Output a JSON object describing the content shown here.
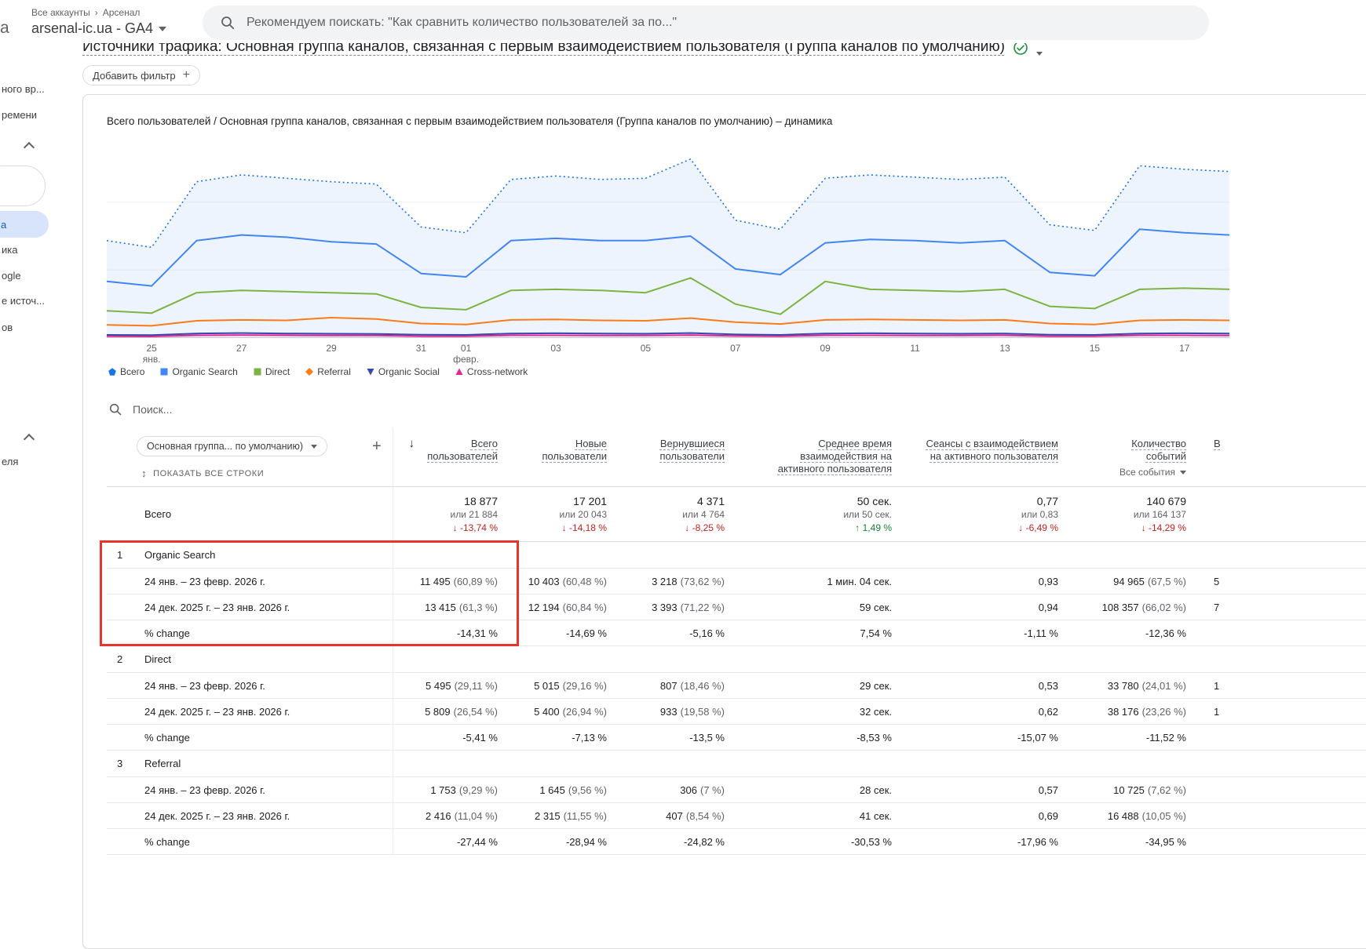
{
  "header": {
    "logo_fragment": "a",
    "breadcrumb": [
      "Все аккаунты",
      "Арсенал"
    ],
    "breadcrumb_separator": "›",
    "property": "arsenal-ic.ua - GA4",
    "search_placeholder": "Рекомендуем поискать: \"Как сравнить количество пользователей за по...\""
  },
  "icons": {
    "arrow_down": "↓",
    "arrow_up": "↑",
    "sort_rows": "↕",
    "plus": "+"
  },
  "sidebar": {
    "fragments": [
      "ного вр...",
      "ремени",
      "ика",
      "ogle",
      "е источ...",
      "ов",
      "еля"
    ],
    "selected_fragment": "а"
  },
  "report": {
    "title": "Источники трафика: Основная группа каналов, связанная с первым взаимодействием пользователя (Группа каналов по умолчанию)",
    "add_filter_label": "Добавить фильтр",
    "chart_title": "Всего пользователей / Основная группа каналов, связанная с первым взаимодействием пользователя (Группа каналов по умолчанию) – динамика",
    "table_search_placeholder": "Поиск..."
  },
  "chart_data": {
    "type": "line",
    "title": "Всего пользователей / Основная группа каналов, связанная с первым взаимодействием пользователя (Группа каналов по умолчанию) – динамика",
    "x_start": "24 янв. 2026",
    "x_end": "18 февр. 2026",
    "ylim": [
      0,
      900
    ],
    "gridlines": [
      300,
      600
    ],
    "ticks": [
      {
        "day": 1,
        "label": "25",
        "sub": "янв."
      },
      {
        "day": 3,
        "label": "27"
      },
      {
        "day": 5,
        "label": "29"
      },
      {
        "day": 7,
        "label": "31"
      },
      {
        "day": 8,
        "label": "01",
        "sub": "февр."
      },
      {
        "day": 10,
        "label": "03"
      },
      {
        "day": 12,
        "label": "05"
      },
      {
        "day": 14,
        "label": "07"
      },
      {
        "day": 16,
        "label": "09"
      },
      {
        "day": 18,
        "label": "11"
      },
      {
        "day": 20,
        "label": "13"
      },
      {
        "day": 22,
        "label": "15"
      },
      {
        "day": 24,
        "label": "17"
      }
    ],
    "series": [
      {
        "name": "Всего",
        "color": "#1a73e8",
        "style": "dotted-area",
        "shape": "pentagon",
        "values": [
          430,
          400,
          690,
          720,
          705,
          690,
          680,
          490,
          465,
          700,
          715,
          700,
          705,
          790,
          520,
          480,
          705,
          720,
          710,
          700,
          710,
          500,
          475,
          760,
          745,
          735
        ]
      },
      {
        "name": "Organic Search",
        "color": "#4285f4",
        "style": "solid",
        "shape": "square",
        "values": [
          250,
          230,
          430,
          455,
          445,
          425,
          415,
          285,
          270,
          430,
          440,
          430,
          430,
          450,
          305,
          280,
          420,
          435,
          430,
          420,
          430,
          290,
          275,
          480,
          465,
          455
        ]
      },
      {
        "name": "Direct",
        "color": "#7cb342",
        "style": "solid",
        "shape": "square",
        "values": [
          120,
          110,
          200,
          210,
          205,
          200,
          195,
          135,
          125,
          210,
          215,
          210,
          200,
          265,
          150,
          105,
          250,
          215,
          210,
          205,
          215,
          140,
          130,
          215,
          220,
          215
        ]
      },
      {
        "name": "Referral",
        "color": "#fa7b17",
        "style": "solid",
        "shape": "diamond",
        "values": [
          58,
          54,
          76,
          80,
          78,
          90,
          84,
          64,
          60,
          80,
          82,
          78,
          76,
          88,
          70,
          62,
          80,
          82,
          80,
          78,
          80,
          64,
          60,
          78,
          80,
          78
        ]
      },
      {
        "name": "Organic Social",
        "color": "#3949ab",
        "style": "solid",
        "shape": "triangle-down",
        "values": [
          14,
          13,
          20,
          22,
          20,
          19,
          18,
          15,
          14,
          20,
          21,
          20,
          19,
          22,
          16,
          14,
          20,
          21,
          20,
          19,
          20,
          15,
          14,
          20,
          21,
          20
        ]
      },
      {
        "name": "Cross-network",
        "color": "#e52592",
        "style": "solid",
        "shape": "triangle-up",
        "values": [
          8,
          7,
          12,
          13,
          12,
          11,
          11,
          8,
          8,
          12,
          12,
          11,
          11,
          13,
          9,
          8,
          12,
          12,
          11,
          11,
          12,
          8,
          8,
          12,
          12,
          11
        ]
      }
    ]
  },
  "table": {
    "dimension_dropdown": "Основная группа... по умолчанию)",
    "show_all_rows": "ПОКАЗАТЬ ВСЕ СТРОКИ",
    "columns": [
      {
        "label": "Всего пользователей",
        "sorted": true
      },
      {
        "label": "Новые пользователи"
      },
      {
        "label": "Вернувшиеся пользователи"
      },
      {
        "label": "Среднее время взаимодействия на активного пользователя"
      },
      {
        "label": "Сеансы с взаимодействием на активного пользователя"
      },
      {
        "label": "Количество событий",
        "sub": "Все события"
      }
    ],
    "cut_column_header": "В",
    "totals": {
      "label": "Всего",
      "cells": [
        {
          "value": "18 877",
          "alt": "или 21 884",
          "change": "-13,74 %",
          "dir": "down"
        },
        {
          "value": "17 201",
          "alt": "или 20 043",
          "change": "-14,18 %",
          "dir": "down"
        },
        {
          "value": "4 371",
          "alt": "или 4 764",
          "change": "-8,25 %",
          "dir": "down"
        },
        {
          "value": "50 сек.",
          "alt": "или 50 сек.",
          "change": "1,49 %",
          "dir": "up"
        },
        {
          "value": "0,77",
          "alt": "или 0,83",
          "change": "-6,49 %",
          "dir": "down"
        },
        {
          "value": "140 679",
          "alt": "или 164 137",
          "change": "-14,29 %",
          "dir": "down"
        }
      ]
    },
    "groups": [
      {
        "num": "1",
        "name": "Organic Search",
        "rows": [
          {
            "label": "24 янв. – 23 февр. 2026 г.",
            "cells": [
              "11 495 (60,89 %)",
              "10 403 (60,48 %)",
              "3 218 (73,62 %)",
              "1 мин. 04 сек.",
              "0,93",
              "94 965 (67,5 %)"
            ],
            "cut": "5"
          },
          {
            "label": "24 дек. 2025 г. – 23 янв. 2026 г.",
            "cells": [
              "13 415 (61,3 %)",
              "12 194 (60,84 %)",
              "3 393 (71,22 %)",
              "59 сек.",
              "0,94",
              "108 357 (66,02 %)"
            ],
            "cut": "7"
          },
          {
            "label": "% change",
            "cells": [
              "-14,31 %",
              "-14,69 %",
              "-5,16 %",
              "7,54 %",
              "-1,11 %",
              "-12,36 %"
            ],
            "cut": ""
          }
        ]
      },
      {
        "num": "2",
        "name": "Direct",
        "rows": [
          {
            "label": "24 янв. – 23 февр. 2026 г.",
            "cells": [
              "5 495 (29,11 %)",
              "5 015 (29,16 %)",
              "807 (18,46 %)",
              "29 сек.",
              "0,53",
              "33 780 (24,01 %)"
            ],
            "cut": "1"
          },
          {
            "label": "24 дек. 2025 г. – 23 янв. 2026 г.",
            "cells": [
              "5 809 (26,54 %)",
              "5 400 (26,94 %)",
              "933 (19,58 %)",
              "32 сек.",
              "0,62",
              "38 176 (23,26 %)"
            ],
            "cut": "1"
          },
          {
            "label": "% change",
            "cells": [
              "-5,41 %",
              "-7,13 %",
              "-13,5 %",
              "-8,53 %",
              "-15,07 %",
              "-11,52 %"
            ],
            "cut": ""
          }
        ]
      },
      {
        "num": "3",
        "name": "Referral",
        "rows": [
          {
            "label": "24 янв. – 23 февр. 2026 г.",
            "cells": [
              "1 753 (9,29 %)",
              "1 645 (9,56 %)",
              "306 (7 %)",
              "28 сек.",
              "0,57",
              "10 725 (7,62 %)"
            ],
            "cut": ""
          },
          {
            "label": "24 дек. 2025 г. – 23 янв. 2026 г.",
            "cells": [
              "2 416 (11,04 %)",
              "2 315 (11,55 %)",
              "407 (8,54 %)",
              "41 сек.",
              "0,69",
              "16 488 (10,05 %)"
            ],
            "cut": ""
          },
          {
            "label": "% change",
            "cells": [
              "-27,44 %",
              "-28,94 %",
              "-24,82 %",
              "-30,53 %",
              "-17,96 %",
              "-34,95 %"
            ],
            "cut": ""
          }
        ]
      }
    ]
  },
  "annotation": {
    "color": "#e8352b"
  }
}
